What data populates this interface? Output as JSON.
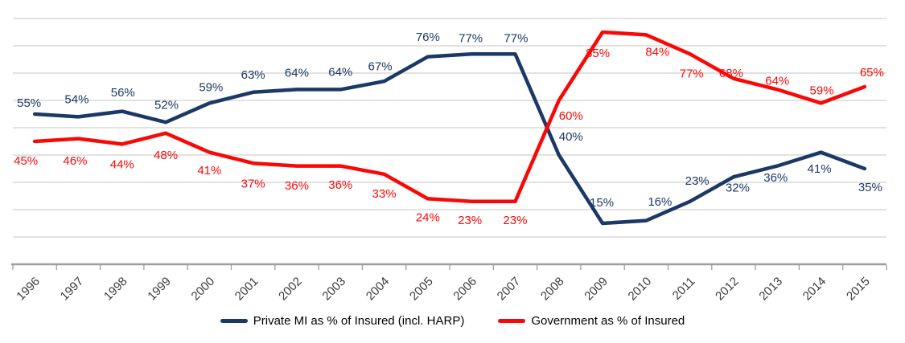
{
  "chart_data": {
    "type": "line",
    "title": "",
    "xlabel": "",
    "ylabel": "",
    "x_categories": [
      "1996",
      "1997",
      "1998",
      "1999",
      "2000",
      "2001",
      "2002",
      "2003",
      "2004",
      "2005",
      "2006",
      "2007",
      "2008",
      "2009",
      "2010",
      "2011",
      "2012",
      "2013",
      "2014",
      "2015"
    ],
    "ylim": [
      0,
      95
    ],
    "grid": {
      "on": true,
      "min": 10,
      "max": 90,
      "step": 10,
      "color": "#C4C4C4",
      "axis_color": "#9E9E9E"
    },
    "legend_position": "bottom-center",
    "label_suffix": "%",
    "text_color_axis": "#3A3A3A",
    "series": [
      {
        "name": "Private MI as % of Insured (incl. HARP)",
        "color": "#1B3866",
        "values": [
          55,
          54,
          56,
          52,
          59,
          63,
          64,
          64,
          67,
          76,
          77,
          77,
          40,
          15,
          16,
          23,
          32,
          36,
          41,
          35
        ],
        "label_offsets": [
          [
            -7,
            -14
          ],
          [
            -2,
            -22
          ],
          [
            1,
            -24
          ],
          [
            1,
            -22
          ],
          [
            2,
            -20
          ],
          [
            0,
            -22
          ],
          [
            0,
            -21
          ],
          [
            0,
            -22
          ],
          [
            -5,
            -19
          ],
          [
            0,
            -25
          ],
          [
            -1,
            -20
          ],
          [
            1,
            -20
          ],
          [
            15,
            -23
          ],
          [
            -1,
            -26
          ],
          [
            17,
            -24
          ],
          [
            9,
            -26
          ],
          [
            5,
            13
          ],
          [
            -2,
            14
          ],
          [
            -2,
            20
          ],
          [
            7,
            23
          ]
        ]
      },
      {
        "name": "Government as % of Insured",
        "color": "#F90808",
        "values": [
          45,
          46,
          44,
          48,
          41,
          37,
          36,
          36,
          33,
          24,
          23,
          23,
          60,
          85,
          84,
          77,
          68,
          64,
          59,
          65
        ],
        "label_offsets": [
          [
            -11,
            24
          ],
          [
            -4,
            27
          ],
          [
            0,
            25
          ],
          [
            0,
            27
          ],
          [
            0,
            22
          ],
          [
            0,
            25
          ],
          [
            0,
            24
          ],
          [
            0,
            23
          ],
          [
            0,
            24
          ],
          [
            0,
            23
          ],
          [
            -2,
            23
          ],
          [
            0,
            23
          ],
          [
            15,
            19
          ],
          [
            -6,
            26
          ],
          [
            14,
            21
          ],
          [
            2,
            24
          ],
          [
            -3,
            -7
          ],
          [
            0,
            -11
          ],
          [
            1,
            -16
          ],
          [
            9,
            -18
          ]
        ]
      }
    ]
  }
}
